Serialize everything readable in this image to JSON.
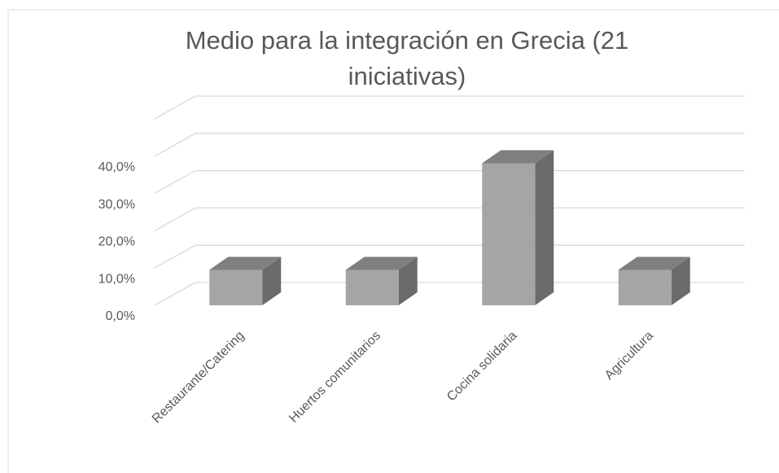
{
  "chart_data": {
    "type": "bar3d",
    "title": "Medio para la integración en Grecia (21 iniciativas)",
    "categories": [
      "Restaurante/Catering",
      "Huertos comunitarios",
      "Cocina solidaria",
      "Agricultura"
    ],
    "values": [
      9.5,
      9.5,
      38.1,
      9.5
    ],
    "color": "#a5a5a5",
    "ylim": [
      0,
      50
    ],
    "yticks": [
      {
        "value": 0,
        "label": "0,0%"
      },
      {
        "value": 10,
        "label": "10,0%"
      },
      {
        "value": 20,
        "label": "20,0%"
      },
      {
        "value": 30,
        "label": "30,0%"
      },
      {
        "value": 40,
        "label": "40,0%"
      }
    ],
    "grid": true
  }
}
